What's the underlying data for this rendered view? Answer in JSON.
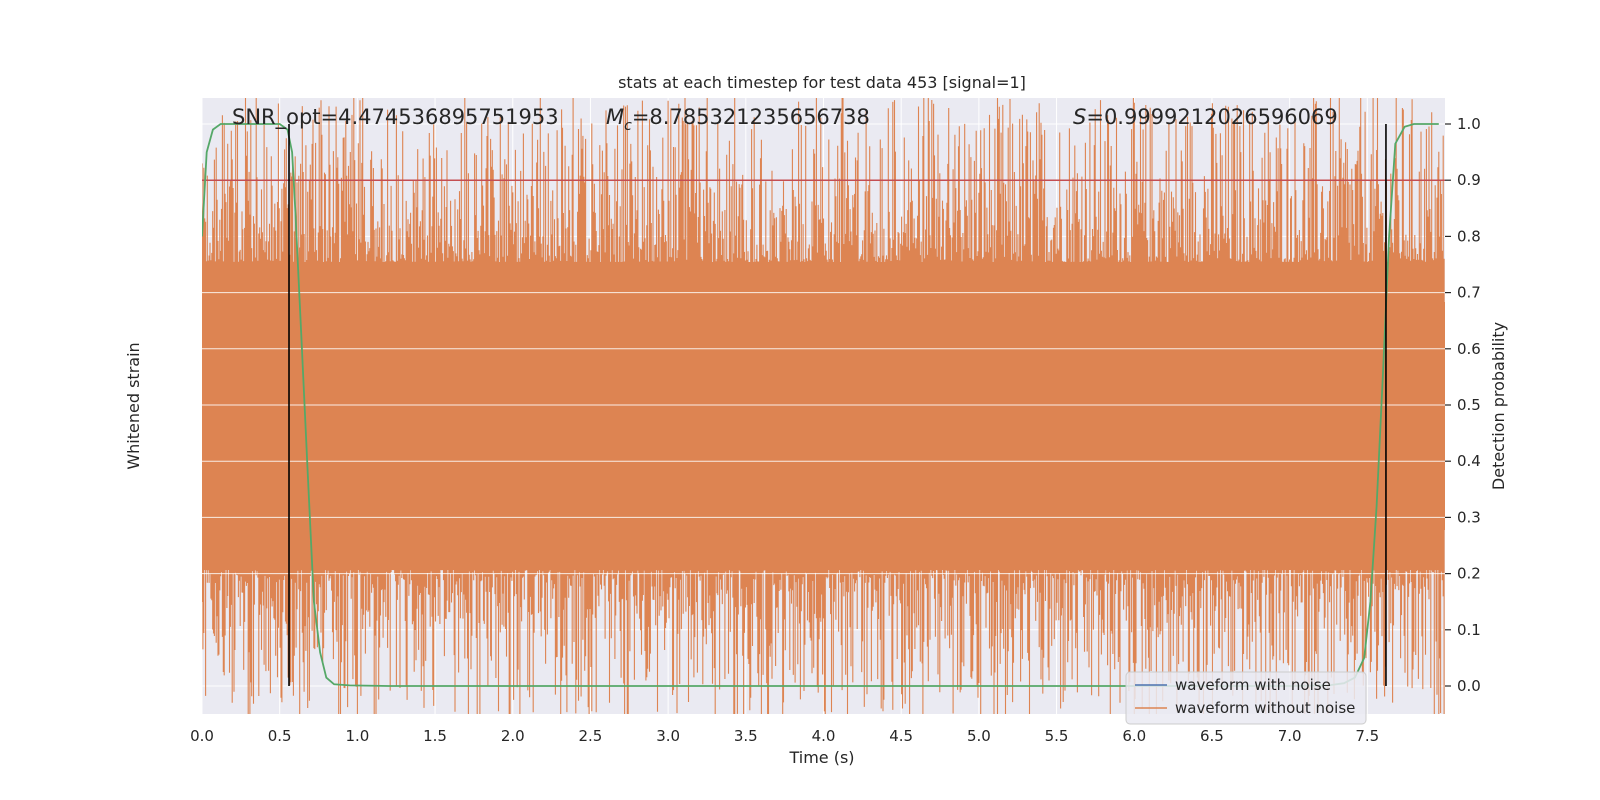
{
  "chart_data": {
    "type": "line",
    "title": "stats at each timestep for test data 453 [signal=1]",
    "xlabel": "Time (s)",
    "ylabel_left": "Whitened strain",
    "ylabel_right": "Detection probability",
    "xlim": [
      0.0,
      8.0
    ],
    "ylim_right": [
      -0.05,
      1.05
    ],
    "x_ticks": [
      "0.0",
      "0.5",
      "1.0",
      "1.5",
      "2.0",
      "2.5",
      "3.0",
      "3.5",
      "4.0",
      "4.5",
      "5.0",
      "5.5",
      "6.0",
      "6.5",
      "7.0",
      "7.5"
    ],
    "y_ticks_right": [
      "0.0",
      "0.1",
      "0.2",
      "0.3",
      "0.4",
      "0.5",
      "0.6",
      "0.7",
      "0.8",
      "0.9",
      "1.0"
    ],
    "grid": true,
    "annotations": {
      "snr": "SNR_opt=4.474536895751953",
      "mc_symbol": "M",
      "mc_sub": "c",
      "mc_value": "=8.785321235656738",
      "s_symbol": "S",
      "s_value": "=0.9999212026596069"
    },
    "threshold": 0.9,
    "vlines": [
      0.56,
      7.62
    ],
    "series": [
      {
        "name": "waveform with noise",
        "color": "#4c72b0"
      },
      {
        "name": "waveform without noise",
        "color": "#dd8452"
      },
      {
        "color": "#55a868",
        "x": [
          0.0,
          0.03,
          0.07,
          0.12,
          0.2,
          0.3,
          0.4,
          0.5,
          0.55,
          0.58,
          0.6,
          0.64,
          0.68,
          0.72,
          0.76,
          0.8,
          0.85,
          0.95,
          1.2,
          2.0,
          3.0,
          4.0,
          5.0,
          6.0,
          7.0,
          7.25,
          7.35,
          7.42,
          7.48,
          7.52,
          7.56,
          7.6,
          7.64,
          7.68,
          7.74,
          7.8,
          7.9,
          7.96
        ],
        "y": [
          0.8,
          0.95,
          0.99,
          1.0,
          1.0,
          1.0,
          1.0,
          1.0,
          0.99,
          0.95,
          0.85,
          0.62,
          0.38,
          0.15,
          0.06,
          0.015,
          0.003,
          0.001,
          0.0,
          0.0,
          0.0,
          0.0,
          0.0,
          0.0,
          0.0,
          0.001,
          0.005,
          0.015,
          0.05,
          0.15,
          0.32,
          0.55,
          0.8,
          0.965,
          0.995,
          1.0,
          1.0,
          1.0
        ]
      }
    ],
    "legend_position": "lower-right",
    "colors": {
      "threshold": "#c44e52",
      "vline": "#000000",
      "background": "#eaeaf2",
      "grid": "#ffffff"
    }
  }
}
